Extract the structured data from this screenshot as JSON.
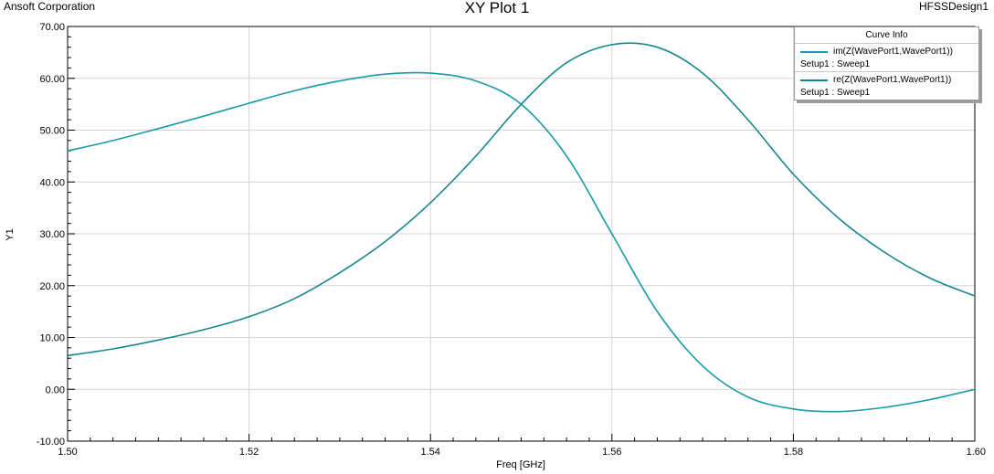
{
  "header": {
    "company": "Ansoft Corporation",
    "title": "XY Plot 1",
    "design": "HFSSDesign1"
  },
  "legend": {
    "title": "Curve Info",
    "entries": [
      {
        "label": "im(Z(WavePort1,WavePort1))",
        "sub": "Setup1 : Sweep1",
        "color": "#1a9aa8"
      },
      {
        "label": "re(Z(WavePort1,WavePort1))",
        "sub": "Setup1 : Sweep1",
        "color": "#17868f"
      }
    ]
  },
  "chart_data": {
    "type": "line",
    "title": "XY Plot 1",
    "xlabel": "Freq [GHz]",
    "ylabel": "Y1",
    "xlim": [
      1.5,
      1.6
    ],
    "ylim": [
      -10,
      70
    ],
    "x_ticks": [
      "1.50",
      "1.52",
      "1.54",
      "1.56",
      "1.58",
      "1.60"
    ],
    "y_ticks": [
      "-10.00",
      "0.00",
      "10.00",
      "20.00",
      "30.00",
      "40.00",
      "50.00",
      "60.00",
      "70.00"
    ],
    "grid": true,
    "legend_position": "top-right",
    "series": [
      {
        "name": "im(Z(WavePort1,WavePort1))",
        "color": "#1a9aa8",
        "x": [
          1.5,
          1.505,
          1.51,
          1.515,
          1.52,
          1.525,
          1.53,
          1.535,
          1.54,
          1.545,
          1.55,
          1.555,
          1.56,
          1.565,
          1.57,
          1.575,
          1.58,
          1.585,
          1.59,
          1.595,
          1.6
        ],
        "y": [
          46.0,
          48.0,
          50.3,
          52.7,
          55.2,
          57.6,
          59.5,
          60.8,
          61.0,
          59.5,
          55.0,
          45.0,
          30.0,
          15.0,
          4.5,
          -1.5,
          -3.8,
          -4.3,
          -3.5,
          -2.0,
          0.0
        ]
      },
      {
        "name": "re(Z(WavePort1,WavePort1))",
        "color": "#17868f",
        "x": [
          1.5,
          1.505,
          1.51,
          1.515,
          1.52,
          1.525,
          1.53,
          1.535,
          1.54,
          1.545,
          1.55,
          1.555,
          1.56,
          1.565,
          1.57,
          1.575,
          1.58,
          1.585,
          1.59,
          1.595,
          1.6
        ],
        "y": [
          6.5,
          7.8,
          9.5,
          11.5,
          14.0,
          17.5,
          22.5,
          28.5,
          36.0,
          45.0,
          55.0,
          63.0,
          66.5,
          66.0,
          61.0,
          52.0,
          41.5,
          33.0,
          26.5,
          21.5,
          18.0
        ]
      }
    ]
  }
}
